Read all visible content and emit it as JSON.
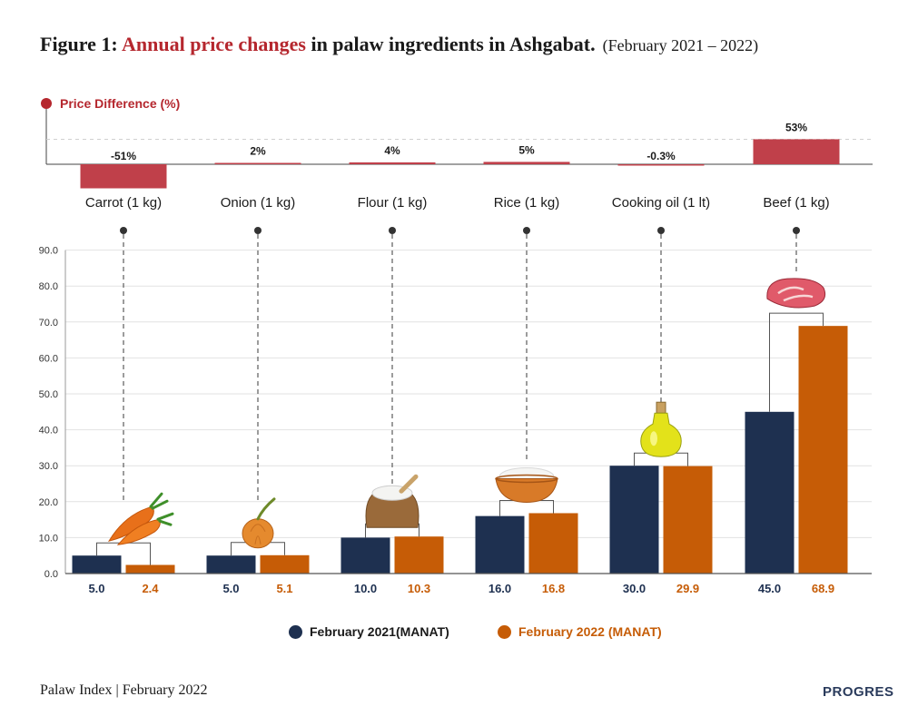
{
  "title": {
    "prefix": "Figure 1: ",
    "highlight": "Annual price changes",
    "rest": " in palaw ingredients in Ashgabat.",
    "subtitle": "(February 2021 – 2022)"
  },
  "colors": {
    "series_2021": "#1e3050",
    "series_2022": "#c65c06",
    "accent": "#b5272e",
    "diff_bar": "#c0404a"
  },
  "price_diff_label": "Price Difference (%)",
  "chart_data": [
    {
      "type": "bar",
      "title": "Price Difference (%)",
      "categories": [
        "Carrot (1 kg)",
        "Onion (1 kg)",
        "Flour (1 kg)",
        "Rice (1 kg)",
        "Cooking oil (1 lt)",
        "Beef (1 kg)"
      ],
      "values": [
        -51,
        2,
        4,
        5,
        -0.3,
        53
      ],
      "labels": [
        "-51%",
        "2%",
        "4%",
        "5%",
        "-0.3%",
        "53%"
      ]
    },
    {
      "type": "bar",
      "categories": [
        "Carrot (1 kg)",
        "Onion (1 kg)",
        "Flour (1 kg)",
        "Rice (1 kg)",
        "Cooking oil (1 lt)",
        "Beef (1 kg)"
      ],
      "series": [
        {
          "name": "February 2021(MANAT)",
          "values": [
            5.0,
            5.0,
            10.0,
            16.0,
            30.0,
            45.0
          ],
          "labels": [
            "5.0",
            "5.0",
            "10.0",
            "16.0",
            "30.0",
            "45.0"
          ]
        },
        {
          "name": "February 2022 (MANAT)",
          "values": [
            2.4,
            5.1,
            10.3,
            16.8,
            29.9,
            68.9
          ],
          "labels": [
            "2.4",
            "5.1",
            "10.3",
            "16.8",
            "29.9",
            "68.9"
          ]
        }
      ],
      "ylim": [
        0,
        90
      ],
      "yticks": [
        "0.0",
        "10.0",
        "20.0",
        "30.0",
        "40.0",
        "50.0",
        "60.0",
        "70.0",
        "80.0",
        "90.0"
      ],
      "grid": true,
      "legend": "bottom"
    }
  ],
  "icons": [
    "carrot-icon",
    "onion-icon",
    "flour-sack-icon",
    "rice-bowl-icon",
    "cooking-oil-icon",
    "beef-icon"
  ],
  "footer": "Palaw Index | February 2022",
  "brand": "PROGRES"
}
